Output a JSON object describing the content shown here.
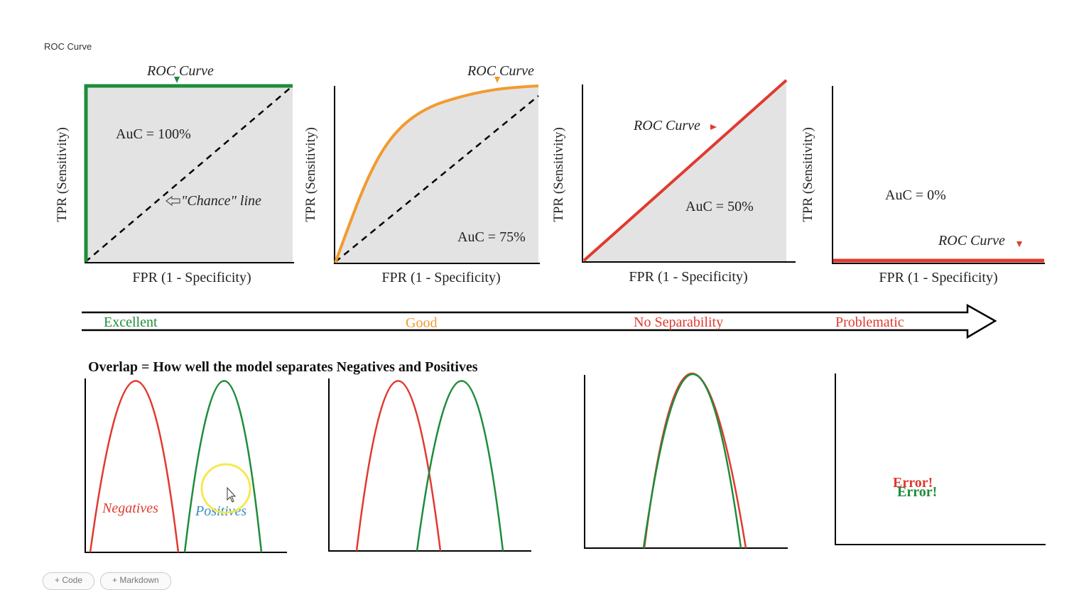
{
  "page": {
    "title": "ROC Curve"
  },
  "roc_panels": [
    {
      "id": "excellent",
      "curve_label": "ROC Curve",
      "auc_label": "AuC = 100%",
      "chance_label": "\"Chance\" line",
      "ylabel": "TPR (Sensitivity)",
      "xlabel": "FPR (1 - Specificity)",
      "curve_color": "#1e8c3c"
    },
    {
      "id": "good",
      "curve_label": "ROC Curve",
      "auc_label": "AuC = 75%",
      "ylabel": "TPR (Sensitivity)",
      "xlabel": "FPR (1 - Specificity)",
      "curve_color": "#f39a2e"
    },
    {
      "id": "no-separability",
      "curve_label": "ROC Curve",
      "auc_label": "AuC = 50%",
      "ylabel": "TPR (Sensitivity)",
      "xlabel": "FPR (1 - Specificity)",
      "curve_color": "#e03a2f"
    },
    {
      "id": "problematic",
      "curve_label": "ROC Curve",
      "auc_label": "AuC = 0%",
      "ylabel": "TPR (Sensitivity)",
      "xlabel": "FPR (1 - Specificity)",
      "curve_color": "#e03a2f"
    }
  ],
  "scale": {
    "labels": [
      {
        "text": "Excellent",
        "color": "#1e8c3c"
      },
      {
        "text": "Good",
        "color": "#f39a2e"
      },
      {
        "text": "No Separability",
        "color": "#e03a2f"
      },
      {
        "text": "Problematic",
        "color": "#e03a2f"
      }
    ]
  },
  "overlap": {
    "title": "Overlap = How well the model separates Negatives and Positives",
    "negatives_label": "Negatives",
    "positives_label": "Positives",
    "error_label": "Error!",
    "negatives_color": "#e03a2f",
    "positives_color": "#1e8c3c"
  },
  "toolbar": {
    "code_label": "+ Code",
    "markdown_label": "+ Markdown"
  }
}
